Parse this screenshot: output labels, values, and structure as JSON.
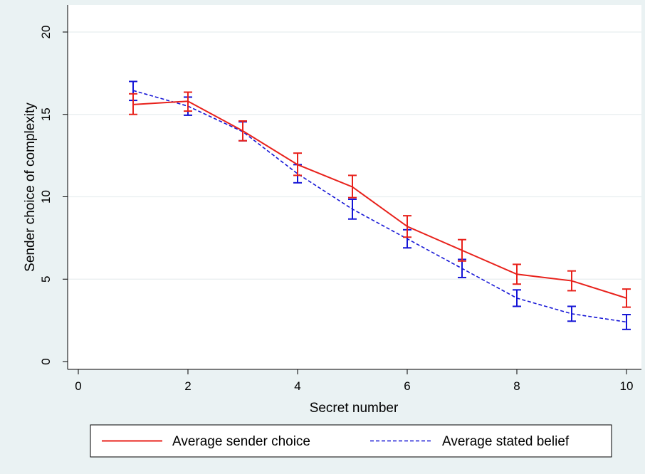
{
  "chart_data": {
    "type": "line",
    "xlabel": "Secret number",
    "ylabel": "Sender choice of complexity",
    "xlim": [
      0,
      10
    ],
    "ylim": [
      0,
      20
    ],
    "x_ticks": [
      "0",
      "2",
      "4",
      "6",
      "8",
      "10"
    ],
    "y_ticks": [
      "0",
      "5",
      "10",
      "15",
      "20"
    ],
    "grid": "horizontal",
    "legend_position": "bottom",
    "x": [
      1,
      2,
      3,
      4,
      5,
      6,
      7,
      8,
      9,
      10
    ],
    "series": [
      {
        "name": "Average sender choice",
        "color": "#e8211b",
        "line_style": "solid",
        "values": [
          15.6,
          15.8,
          14.0,
          11.95,
          10.6,
          8.2,
          6.75,
          5.3,
          4.9,
          3.85
        ],
        "error_low": [
          15.0,
          15.2,
          13.4,
          11.3,
          9.95,
          7.55,
          6.1,
          4.7,
          4.3,
          3.3
        ],
        "error_high": [
          16.25,
          16.35,
          14.6,
          12.65,
          11.3,
          8.85,
          7.4,
          5.9,
          5.5,
          4.4
        ]
      },
      {
        "name": "Average stated belief",
        "color": "#1515d6",
        "line_style": "dashed",
        "values": [
          16.45,
          15.5,
          13.95,
          11.4,
          9.25,
          7.45,
          5.65,
          3.85,
          2.9,
          2.4
        ],
        "error_low": [
          15.85,
          14.95,
          13.4,
          10.85,
          8.65,
          6.9,
          5.1,
          3.35,
          2.45,
          1.95
        ],
        "error_high": [
          17.0,
          16.05,
          14.55,
          11.95,
          9.85,
          8.0,
          6.2,
          4.35,
          3.35,
          2.85
        ]
      }
    ]
  }
}
